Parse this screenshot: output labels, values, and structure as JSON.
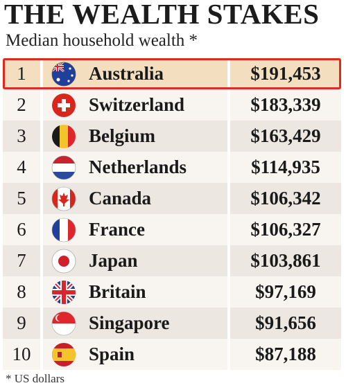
{
  "header": {
    "title": "THE WEALTH STAKES",
    "subtitle": "Median household wealth *"
  },
  "footnote": "* US dollars",
  "highlight_color": "#e02a1f",
  "chart_data": {
    "type": "table",
    "title": "THE WEALTH STAKES",
    "subtitle": "Median household wealth *",
    "columns": [
      "rank",
      "country",
      "value"
    ],
    "rows": [
      {
        "rank": "1",
        "country": "Australia",
        "value": "$191,453",
        "flag": "australia-flag-icon"
      },
      {
        "rank": "2",
        "country": "Switzerland",
        "value": "$183,339",
        "flag": "switzerland-flag-icon"
      },
      {
        "rank": "3",
        "country": "Belgium",
        "value": "$163,429",
        "flag": "belgium-flag-icon"
      },
      {
        "rank": "4",
        "country": "Netherlands",
        "value": "$114,935",
        "flag": "netherlands-flag-icon"
      },
      {
        "rank": "5",
        "country": "Canada",
        "value": "$106,342",
        "flag": "canada-flag-icon"
      },
      {
        "rank": "6",
        "country": "France",
        "value": "$106,327",
        "flag": "france-flag-icon"
      },
      {
        "rank": "7",
        "country": "Japan",
        "value": "$103,861",
        "flag": "japan-flag-icon"
      },
      {
        "rank": "8",
        "country": "Britain",
        "value": "$97,169",
        "flag": "britain-flag-icon"
      },
      {
        "rank": "9",
        "country": "Singapore",
        "value": "$91,656",
        "flag": "singapore-flag-icon"
      },
      {
        "rank": "10",
        "country": "Spain",
        "value": "$87,188",
        "flag": "spain-flag-icon"
      }
    ],
    "values": [
      191453,
      183339,
      163429,
      114935,
      106342,
      106327,
      103861,
      97169,
      91656,
      87188
    ],
    "highlighted_rank": "1"
  }
}
